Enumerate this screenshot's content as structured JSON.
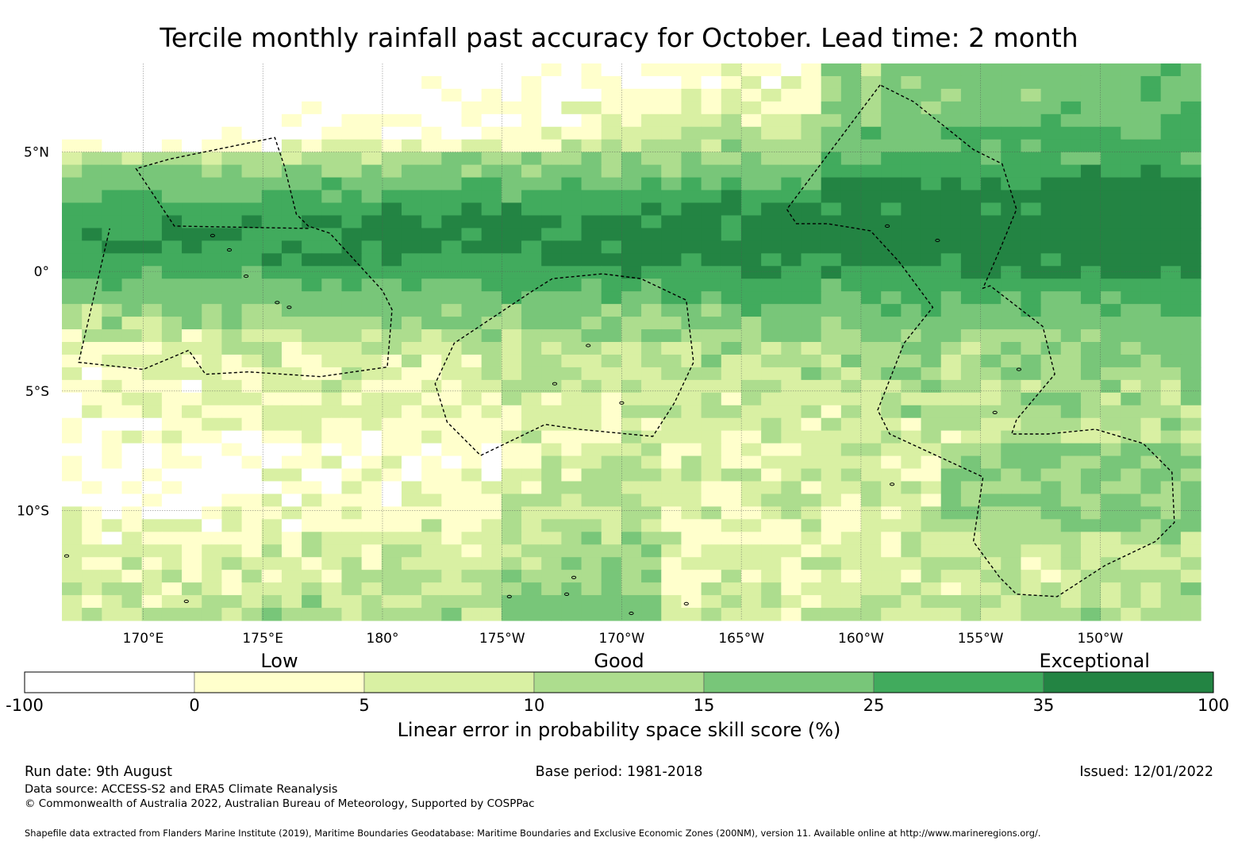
{
  "title": "Tercile monthly rainfall past accuracy for October. Lead time: 2 month",
  "map": {
    "lon_range": [
      166.6,
      214.2
    ],
    "lat_range": [
      -14.6,
      8.7
    ],
    "lon_ticks": [
      {
        "value": 170,
        "label": "170°E"
      },
      {
        "value": 175,
        "label": "175°E"
      },
      {
        "value": 180,
        "label": "180°"
      },
      {
        "value": 185,
        "label": "175°W"
      },
      {
        "value": 190,
        "label": "170°W"
      },
      {
        "value": 195,
        "label": "165°W"
      },
      {
        "value": 200,
        "label": "160°W"
      },
      {
        "value": 205,
        "label": "155°W"
      },
      {
        "value": 210,
        "label": "150°W"
      }
    ],
    "lat_ticks": [
      {
        "value": 5,
        "label": "5°N"
      },
      {
        "value": 0,
        "label": "0°"
      },
      {
        "value": -5,
        "label": "5°S"
      },
      {
        "value": -10,
        "label": "10°S"
      }
    ],
    "grid_lines": true,
    "boundaries": "dashed EEZ outlines (Nauru/Kiribati Gilbert Is., Tuvalu/Phoenix Is., Line Is.)"
  },
  "colorbar": {
    "boundaries": [
      "-100",
      "0",
      "5",
      "10",
      "15",
      "25",
      "35",
      "100"
    ],
    "colors": [
      "#ffffff",
      "#ffffcc",
      "#d9f0a3",
      "#addd8e",
      "#78c679",
      "#41ab5d",
      "#238443"
    ],
    "category_labels": [
      {
        "text": "Low",
        "at_bin": 1.5
      },
      {
        "text": "Good",
        "at_bin": 3.5
      },
      {
        "text": "Exceptional",
        "at_bin": 6.3
      }
    ],
    "label": "Linear error in probability space skill score (%)"
  },
  "footer": {
    "run_date": "Run date: 9th August",
    "base_period": "Base period: 1981-2018",
    "issued": "Issued: 12/01/2022",
    "data_source": "Data source: ACCESS-S2 and ERA5 Climate Reanalysis",
    "copyright": "© Commonwealth of Australia 2022, Australian Bureau of Meteorology, Supported by COSPPac",
    "shapefile": "Shapefile data extracted from Flanders Marine Institute (2019), Maritime Boundaries Geodatabase: Maritime Boundaries and Exclusive Economic Zones (200NM), version 11. Available online at http://www.marineregions.org/."
  }
}
